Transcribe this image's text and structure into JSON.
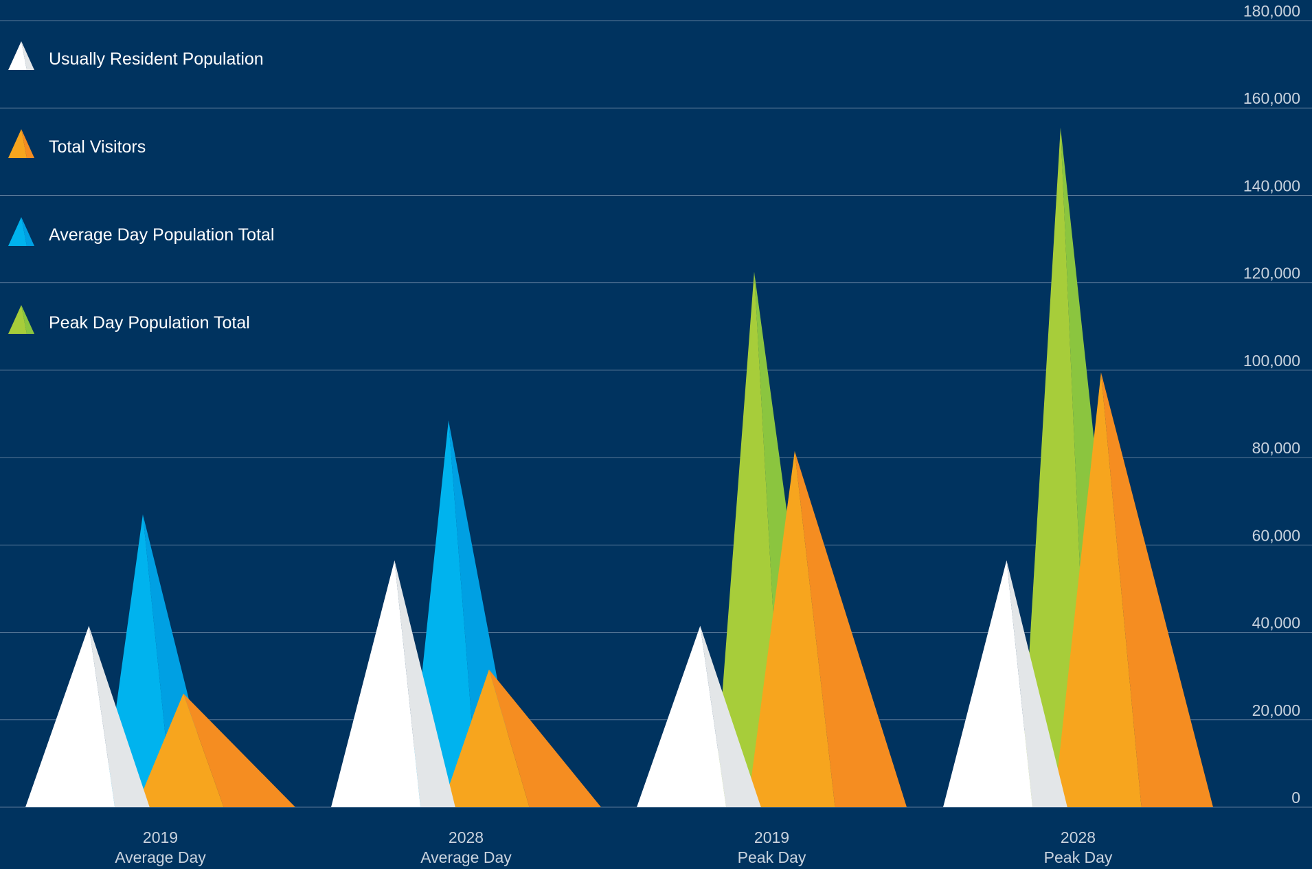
{
  "chart_data": {
    "type": "area",
    "title": "",
    "xlabel": "",
    "ylabel": "",
    "ylim": [
      0,
      180000
    ],
    "yticks": [
      0,
      20000,
      40000,
      60000,
      80000,
      100000,
      120000,
      140000,
      160000,
      180000
    ],
    "ytick_labels": [
      "0",
      "20,000",
      "40,000",
      "60,000",
      "80,000",
      "100,000",
      "120,000",
      "140,000",
      "160,000",
      "180,000"
    ],
    "y_axis_position": "right",
    "grid": true,
    "legend_position": "top-left",
    "categories": [
      {
        "line1": "2019",
        "line2": "Average Day"
      },
      {
        "line1": "2028",
        "line2": "Average Day"
      },
      {
        "line1": "2019",
        "line2": "Peak Day"
      },
      {
        "line1": "2028",
        "line2": "Peak Day"
      }
    ],
    "series": [
      {
        "name": "Usually Resident Population",
        "color": "#ffffff",
        "shade": "#e3e6e8",
        "values": [
          41500,
          56500,
          41500,
          56500
        ]
      },
      {
        "name": "Total Visitors",
        "color": "#f7a51e",
        "shade": "#f58d21",
        "values": [
          26000,
          31500,
          81500,
          99500
        ]
      },
      {
        "name": "Average Day Population Total",
        "color": "#00b3ee",
        "shade": "#00a0e3",
        "values": [
          67000,
          88500,
          null,
          null
        ]
      },
      {
        "name": "Peak Day Population Total",
        "color": "#a7cd3a",
        "shade": "#8bc53f",
        "values": [
          null,
          null,
          122500,
          155500
        ]
      }
    ]
  },
  "colors": {
    "background": "#00335f",
    "gridline": "#5a7a99",
    "axis_text": "#c9d3de"
  }
}
